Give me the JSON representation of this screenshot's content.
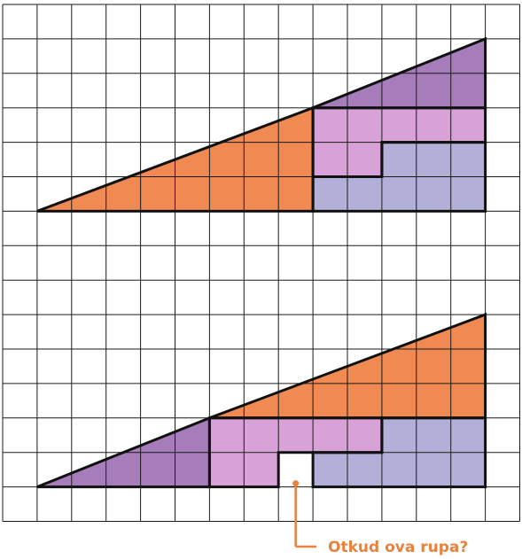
{
  "grid": {
    "cols": 15,
    "rows": 15,
    "line_color": "#1a1a1a",
    "background": "#ffffff"
  },
  "colors": {
    "orange": "#f08a52",
    "purple": "#a67dba",
    "pink": "#d8a2d8",
    "lavender": "#b2b0d8",
    "outline": "#111111",
    "annotation": "#e8823e"
  },
  "puzzle": {
    "top": {
      "pieces": [
        {
          "name": "top-orange-triangle",
          "color": "orange",
          "cells": [
            [
              1,
              6
            ],
            [
              9,
              6
            ],
            [
              9,
              3
            ]
          ]
        },
        {
          "name": "top-purple-triangle",
          "color": "purple",
          "cells": [
            [
              9,
              3
            ],
            [
              14,
              3
            ],
            [
              14,
              1
            ]
          ]
        },
        {
          "name": "top-pink-piece",
          "color": "pink",
          "cells": [
            [
              9,
              3
            ],
            [
              14,
              3
            ],
            [
              14,
              4
            ],
            [
              11,
              4
            ],
            [
              11,
              5
            ],
            [
              9,
              5
            ]
          ]
        },
        {
          "name": "top-lavender-piece",
          "color": "lavender",
          "cells": [
            [
              9,
              5
            ],
            [
              11,
              5
            ],
            [
              11,
              4
            ],
            [
              14,
              4
            ],
            [
              14,
              6
            ],
            [
              9,
              6
            ]
          ]
        }
      ]
    },
    "bottom": {
      "pieces": [
        {
          "name": "bottom-purple-triangle",
          "color": "purple",
          "cells": [
            [
              1,
              14
            ],
            [
              6,
              14
            ],
            [
              6,
              12
            ]
          ]
        },
        {
          "name": "bottom-orange-triangle",
          "color": "orange",
          "cells": [
            [
              6,
              12
            ],
            [
              14,
              12
            ],
            [
              14,
              9
            ]
          ]
        },
        {
          "name": "bottom-pink-piece",
          "color": "pink",
          "cells": [
            [
              6,
              12
            ],
            [
              11,
              12
            ],
            [
              11,
              13
            ],
            [
              8,
              13
            ],
            [
              8,
              14
            ],
            [
              6,
              14
            ]
          ]
        },
        {
          "name": "bottom-lavender-piece",
          "color": "lavender",
          "cells": [
            [
              11,
              12
            ],
            [
              14,
              12
            ],
            [
              14,
              14
            ],
            [
              9,
              14
            ],
            [
              9,
              13
            ],
            [
              11,
              13
            ]
          ]
        }
      ],
      "hole": [
        [
          8,
          13
        ],
        [
          9,
          13
        ],
        [
          9,
          14
        ],
        [
          8,
          14
        ]
      ]
    }
  },
  "annotation": {
    "text": "Otkud ova rupa?"
  }
}
